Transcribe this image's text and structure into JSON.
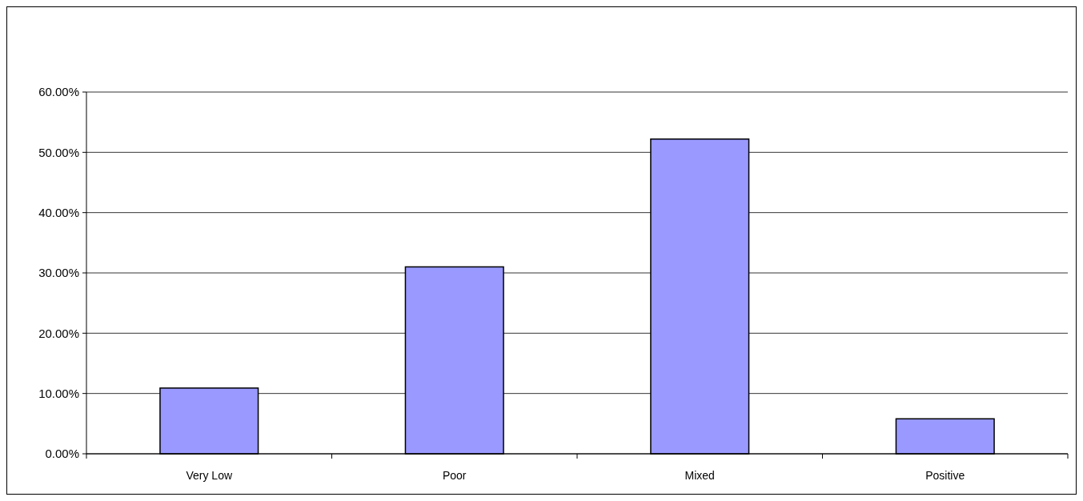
{
  "chart_data": {
    "type": "bar",
    "categories": [
      "Very Low",
      "Poor",
      "Mixed",
      "Positive"
    ],
    "values": [
      10.9,
      31,
      52.2,
      5.8
    ],
    "color": "#9999ff",
    "ylim": [
      0,
      60
    ],
    "yticks": [
      {
        "value": 0,
        "label": "0.00%"
      },
      {
        "value": 10,
        "label": "10.00%"
      },
      {
        "value": 20,
        "label": "20.00%"
      },
      {
        "value": 30,
        "label": "30.00%"
      },
      {
        "value": 40,
        "label": "40.00%"
      },
      {
        "value": 50,
        "label": "50.00%"
      },
      {
        "value": 60,
        "label": "60.00%"
      }
    ],
    "grid": "y"
  }
}
